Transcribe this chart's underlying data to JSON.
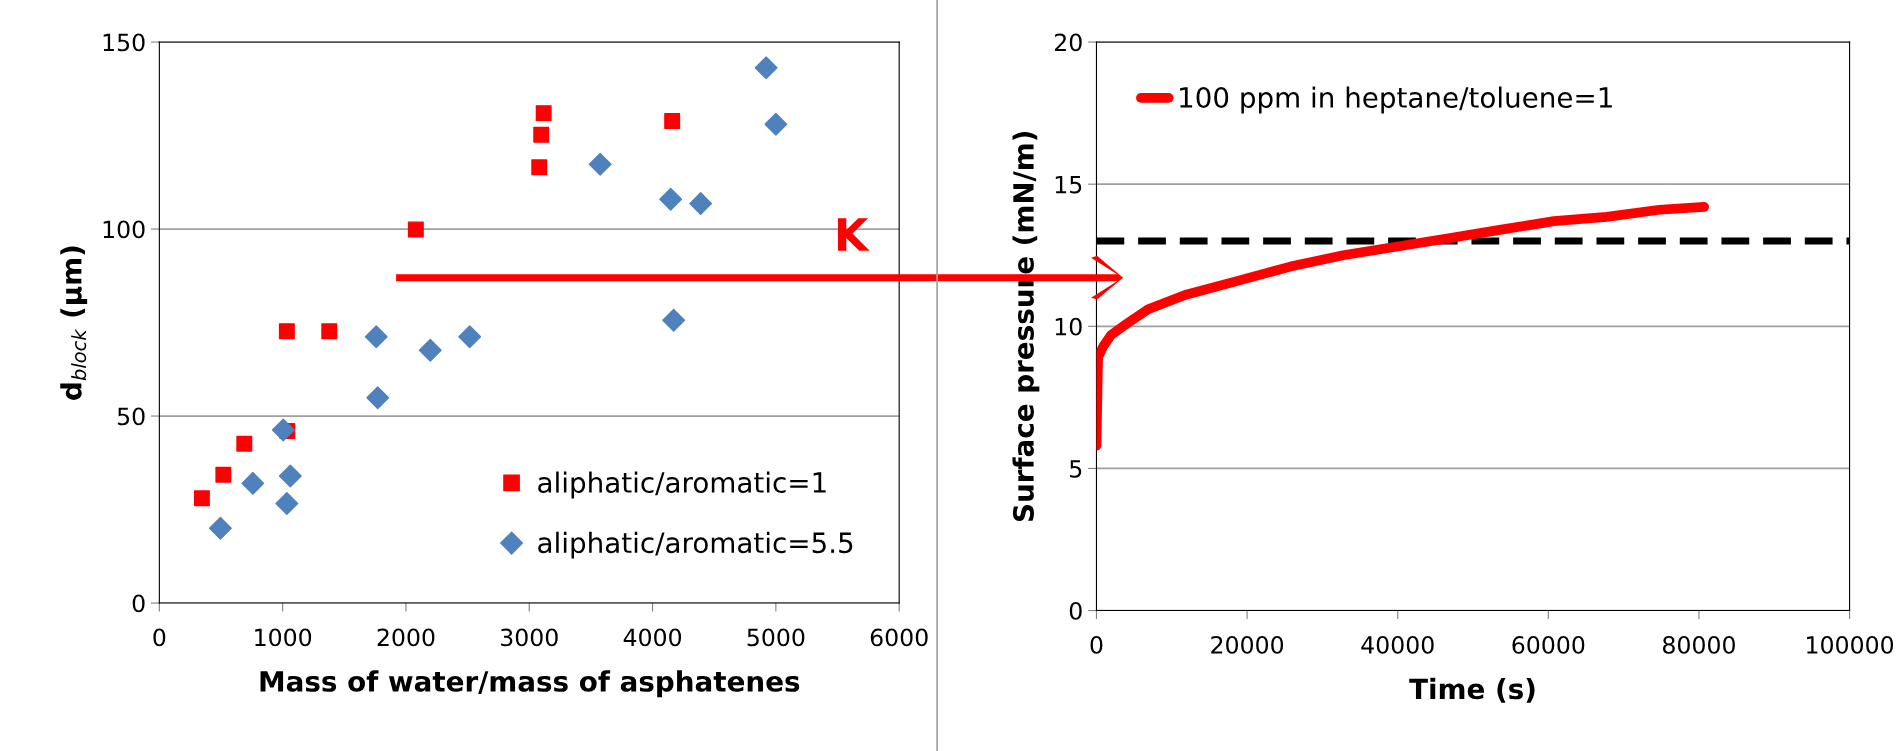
{
  "chart_data": [
    {
      "type": "scatter",
      "xlabel": "Mass of water/mass of asphatenes",
      "ylabel": "d$_{block}$ (μm)",
      "xlim": [
        0,
        6000
      ],
      "xticks": [
        0,
        1000,
        2000,
        3000,
        4000,
        5000,
        6000
      ],
      "ylim": [
        0,
        150
      ],
      "yticks": [
        0,
        50,
        100,
        150
      ],
      "grid": "y",
      "legend": "bottom right",
      "annotations": [
        "K"
      ],
      "series": [
        {
          "name": "aliphatic/aromatic=1",
          "color": "#ff0000",
          "marker": "square",
          "x": [
            345,
            519,
            689,
            1034,
            1038,
            1378,
            2080,
            3081,
            3097,
            3117,
            4159
          ],
          "values": [
            28,
            34.3,
            42.6,
            72.7,
            46,
            72.7,
            99.9,
            116.5,
            125.2,
            131,
            128.9
          ]
        },
        {
          "name": "aliphatic/aromatic=5.5",
          "color": "#4f81bd",
          "marker": "diamond",
          "x": [
            495,
            758,
            1005,
            1034,
            1062,
            1759,
            1771,
            2197,
            2517,
            3575,
            4147,
            4390,
            4171,
            4921,
            5000
          ],
          "values": [
            20,
            32,
            46.3,
            26.6,
            34,
            71.2,
            54.9,
            67.6,
            71.2,
            117.3,
            108,
            106.8,
            75.6,
            143.1,
            128
          ]
        }
      ]
    },
    {
      "type": "line",
      "xlabel": "Time (s)",
      "ylabel": "Surface pressure (mN/m)",
      "xlim": [
        0,
        100000
      ],
      "xticks": [
        0,
        20000,
        40000,
        60000,
        80000,
        100000
      ],
      "ylim": [
        0,
        20
      ],
      "yticks": [
        0,
        5,
        10,
        15,
        20
      ],
      "grid": "y",
      "legend": "top left",
      "marker": "none",
      "line_style": "solid",
      "ref_lines": [
        {
          "axis": "y",
          "value": 13,
          "color": "#000000",
          "line_style": "dashed"
        }
      ],
      "series": [
        {
          "name": "100 ppm in heptane/toluene=1",
          "color": "#ff0000",
          "x": [
            0,
            210,
            910,
            1960,
            4060,
            6860,
            11760,
            18750,
            25750,
            32750,
            39750,
            46750,
            53740,
            60740,
            67740,
            74740,
            80690
          ],
          "values": [
            5.8,
            8.9,
            9.3,
            9.7,
            10.1,
            10.6,
            11.1,
            11.6,
            12.1,
            12.5,
            12.8,
            13.1,
            13.4,
            13.7,
            13.85,
            14.1,
            14.2
          ]
        }
      ]
    }
  ]
}
